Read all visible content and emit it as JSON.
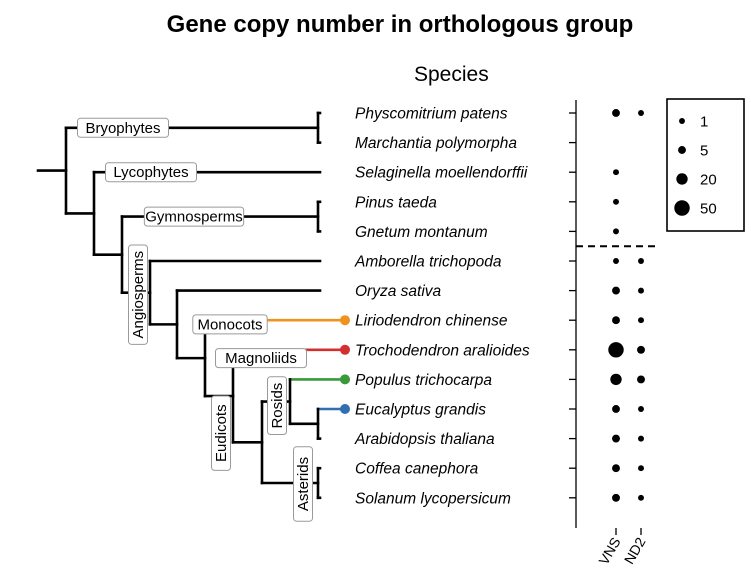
{
  "chart_data": {
    "type": "scatter",
    "title": "Gene copy number in orthologous group",
    "ylabel": "Species",
    "columns": [
      "VNS",
      "ND2"
    ],
    "species": [
      {
        "name": "Physcomitrium patens",
        "copies": [
          5,
          1
        ]
      },
      {
        "name": "Marchantia polymorpha",
        "copies": [
          null,
          null
        ]
      },
      {
        "name": "Selaginella moellendorffii",
        "copies": [
          1,
          null
        ]
      },
      {
        "name": "Pinus taeda",
        "copies": [
          1,
          null
        ]
      },
      {
        "name": "Gnetum montanum",
        "copies": [
          1,
          null
        ]
      },
      {
        "name": "Amborella trichopoda",
        "copies": [
          1,
          1
        ]
      },
      {
        "name": "Oryza sativa",
        "copies": [
          5,
          1
        ]
      },
      {
        "name": "Liriodendron chinense",
        "copies": [
          5,
          1
        ]
      },
      {
        "name": "Trochodendron aralioides",
        "copies": [
          50,
          5
        ]
      },
      {
        "name": "Populus trichocarpa",
        "copies": [
          20,
          5
        ]
      },
      {
        "name": "Eucalyptus grandis",
        "copies": [
          5,
          1
        ]
      },
      {
        "name": "Arabidopsis thaliana",
        "copies": [
          5,
          1
        ]
      },
      {
        "name": "Coffea canephora",
        "copies": [
          5,
          1
        ]
      },
      {
        "name": "Solanum lycopersicum",
        "copies": [
          5,
          1
        ]
      }
    ],
    "legend": {
      "placement": "right",
      "values": [
        1,
        5,
        20,
        50
      ],
      "labels": [
        "1",
        "5",
        "20",
        "50"
      ]
    },
    "clades": [
      "Bryophytes",
      "Lycophytes",
      "Gymnosperms",
      "Angiosperms",
      "Monocots",
      "Magnoliids",
      "Eudicots",
      "Rosids",
      "Asterids"
    ],
    "highlight_colors": {
      "Liriodendron chinense": "#f0921e",
      "Trochodendron aralioides": "#d32f2f",
      "Populus trichocarpa": "#3a9a3a",
      "Eucalyptus grandis": "#2f6fb2"
    }
  }
}
